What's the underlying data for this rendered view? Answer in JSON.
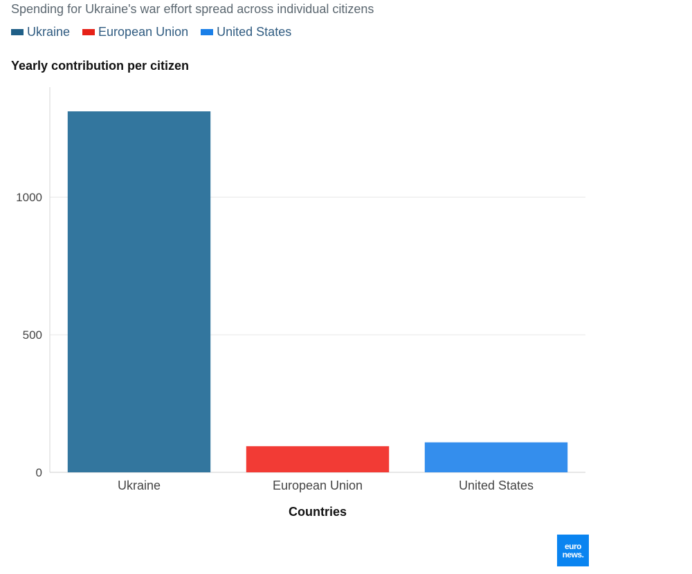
{
  "subtitle": "Spending for Ukraine's war effort spread across individual citizens",
  "legend": [
    {
      "label": "Ukraine",
      "color": "#1f5f87"
    },
    {
      "label": "European Union",
      "color": "#e62117"
    },
    {
      "label": "United States",
      "color": "#1a7fe8"
    }
  ],
  "logo": {
    "line1": "euro",
    "line2": "news."
  },
  "chart_data": {
    "type": "bar",
    "title": "",
    "ylabel": "Yearly contribution per citizen",
    "xlabel": "Countries",
    "categories": [
      "Ukraine",
      "European Union",
      "United States"
    ],
    "values": [
      1312,
      95,
      109
    ],
    "colors": [
      "#33769e",
      "#f23b35",
      "#348eed"
    ],
    "ylim": [
      0,
      1400
    ],
    "yticks": [
      0,
      500,
      1000
    ],
    "ytick_labels": [
      "0",
      "500",
      "1000"
    ],
    "grid": true,
    "legend_position": "top-left"
  }
}
